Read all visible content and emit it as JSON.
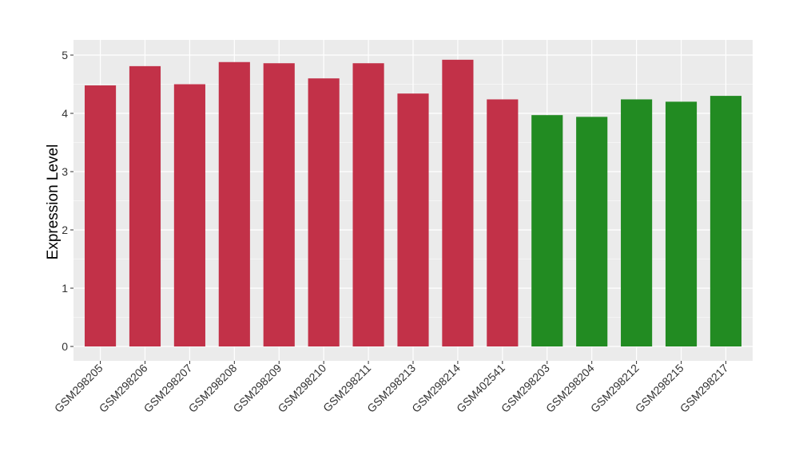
{
  "chart_data": {
    "type": "bar",
    "title": "",
    "xlabel": "",
    "ylabel": "Expression Level",
    "ylim": [
      0,
      5
    ],
    "yticks": [
      0,
      1,
      2,
      3,
      4,
      5
    ],
    "grid": true,
    "background": "#EBEBEB",
    "categories": [
      "GSM298205",
      "GSM298206",
      "GSM298207",
      "GSM298208",
      "GSM298209",
      "GSM298210",
      "GSM298211",
      "GSM298213",
      "GSM298214",
      "GSM402541",
      "GSM298203",
      "GSM298204",
      "GSM298212",
      "GSM298215",
      "GSM298217"
    ],
    "values": [
      4.48,
      4.81,
      4.5,
      4.88,
      4.86,
      4.6,
      4.86,
      4.34,
      4.92,
      4.24,
      3.97,
      3.94,
      4.24,
      4.2,
      4.3
    ],
    "groups": [
      "a",
      "a",
      "a",
      "a",
      "a",
      "a",
      "a",
      "a",
      "a",
      "a",
      "b",
      "b",
      "b",
      "b",
      "b"
    ],
    "colors": {
      "a": "#C23148",
      "b": "#228B22"
    }
  }
}
